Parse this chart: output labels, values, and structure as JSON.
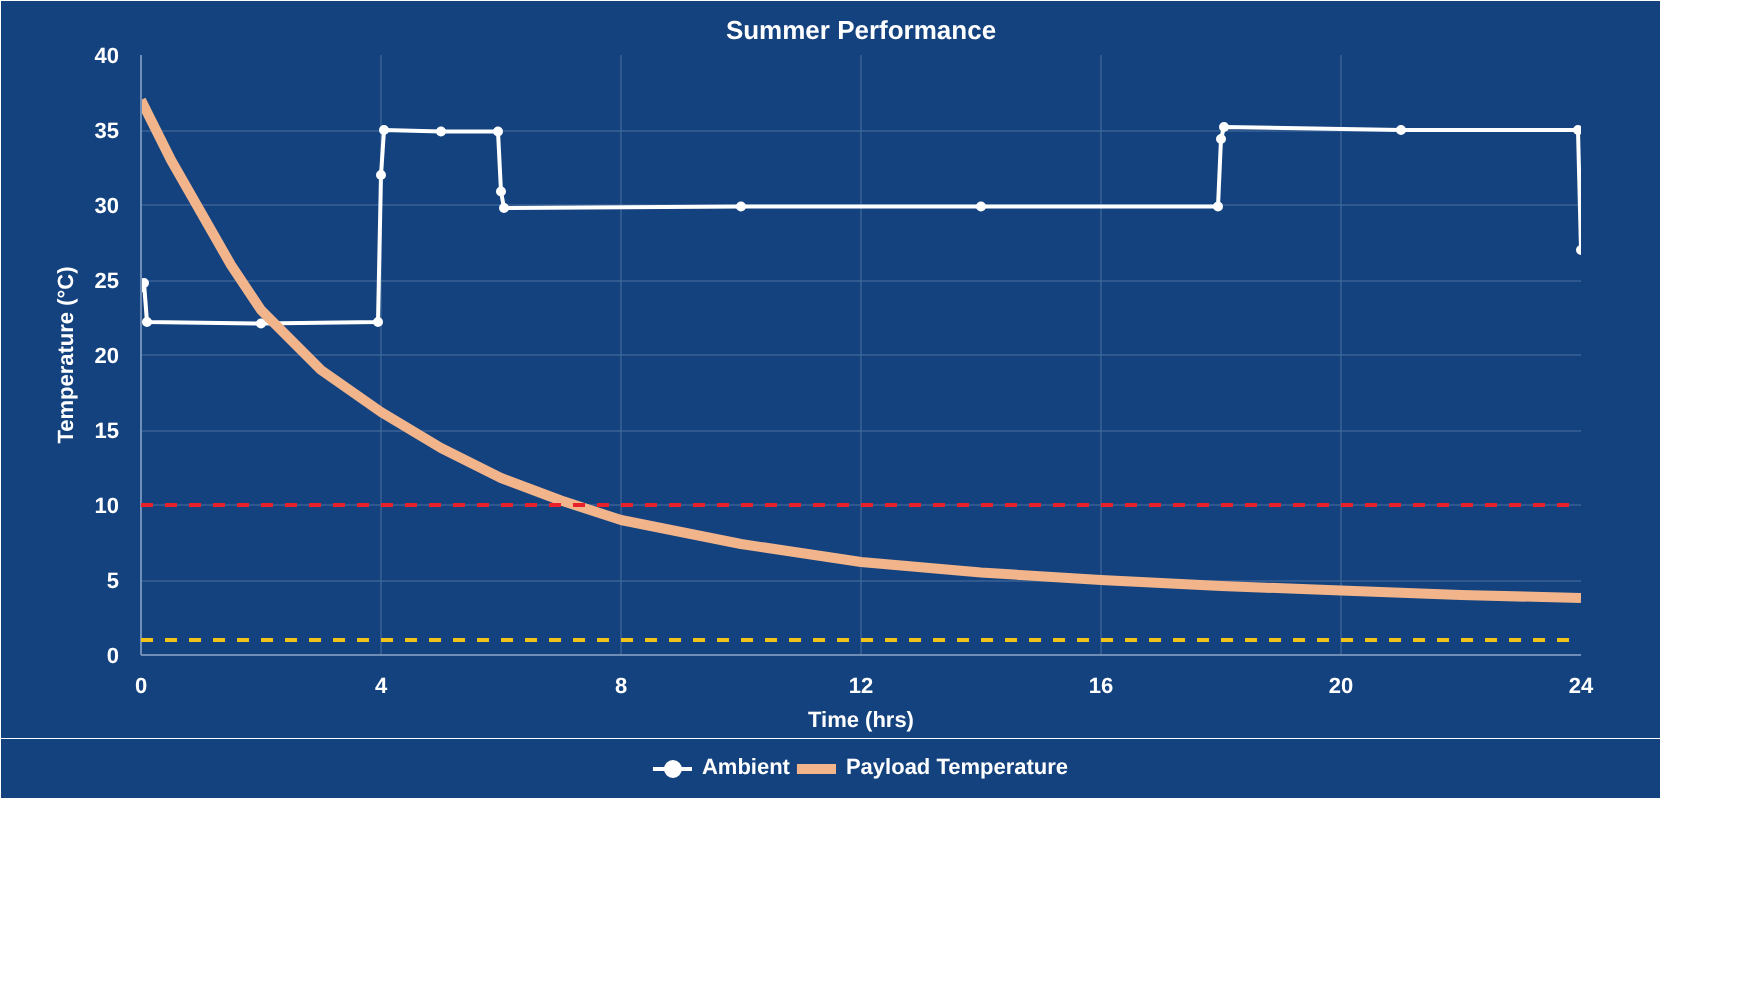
{
  "chart_data": {
    "type": "line",
    "title": "Summer Performance",
    "xlabel": "Time (hrs)",
    "ylabel": "Temperature (°C)",
    "xlim": [
      0,
      24
    ],
    "xticks": [
      0,
      4,
      8,
      12,
      16,
      20,
      24
    ],
    "ylim": [
      0,
      40
    ],
    "yticks": [
      0,
      5,
      10,
      15,
      20,
      25,
      30,
      35,
      40
    ],
    "grid": true,
    "legend": "bottom",
    "series": [
      {
        "name": "Ambient",
        "color": "#ffffff",
        "marker": "circle",
        "x": [
          0,
          0.05,
          0.1,
          2,
          3.95,
          4.0,
          4.05,
          5,
          5.95,
          6.0,
          6.05,
          10,
          14,
          17.95,
          18.0,
          18.05,
          21,
          23.95,
          24
        ],
        "values": [
          24.5,
          24.8,
          22.2,
          22.1,
          22.2,
          32,
          35,
          34.9,
          34.9,
          30.9,
          29.8,
          29.9,
          29.9,
          29.9,
          34.4,
          35.2,
          35,
          35,
          27
        ]
      },
      {
        "name": "Payload Temperature",
        "color": "#f2b48a",
        "marker": "none",
        "x": [
          0,
          0.5,
          1,
          1.5,
          2,
          3,
          4,
          5,
          6,
          7,
          8,
          10,
          12,
          14,
          16,
          18,
          20,
          22,
          24
        ],
        "values": [
          37,
          33,
          29.5,
          26,
          23,
          19,
          16.2,
          13.8,
          11.8,
          10.3,
          9.0,
          7.4,
          6.2,
          5.5,
          5.0,
          4.6,
          4.3,
          4.0,
          3.8
        ]
      }
    ],
    "ref_lines": [
      {
        "axis": "y",
        "value": 10,
        "color": "#e8202a",
        "line_style": "dashed"
      },
      {
        "axis": "y",
        "value": 1,
        "color": "#f2c21b",
        "line_style": "dashed"
      }
    ]
  }
}
